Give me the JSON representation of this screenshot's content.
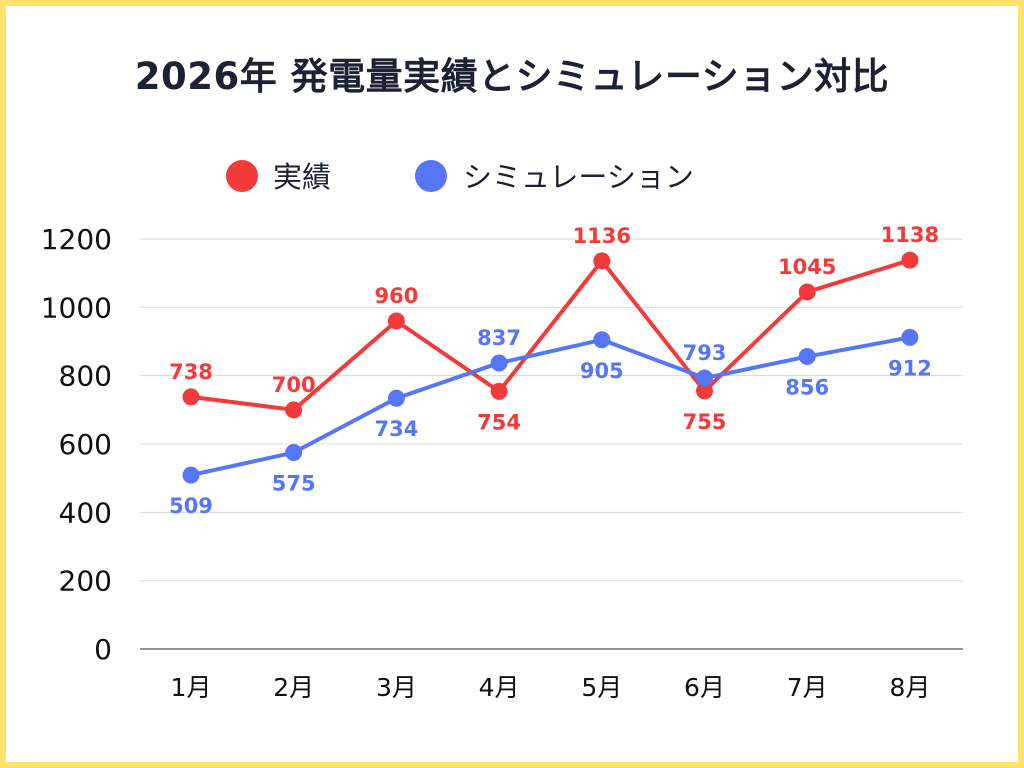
{
  "chart_data": {
    "type": "line",
    "title": "2026年 発電量実績とシミュレーション対比",
    "categories": [
      "1月",
      "2月",
      "3月",
      "4月",
      "5月",
      "6月",
      "7月",
      "8月"
    ],
    "series": [
      {
        "name": "実績",
        "color": "#f33a3a",
        "values": [
          738,
          700,
          960,
          754,
          1136,
          755,
          1045,
          1138
        ]
      },
      {
        "name": "シミュレーション",
        "color": "#5577f7",
        "values": [
          509,
          575,
          734,
          837,
          905,
          793,
          856,
          912
        ]
      }
    ],
    "ylim": [
      0,
      1200
    ],
    "yticks": [
      0,
      200,
      400,
      600,
      800,
      1000,
      1200
    ],
    "xlabel": "",
    "ylabel": "",
    "grid": true,
    "legend_position": "top-center"
  },
  "colors": {
    "frame_border": "#ffe36b",
    "grid": "#d9d9d9",
    "axis": "#555555",
    "title_text": "#1c2233"
  }
}
